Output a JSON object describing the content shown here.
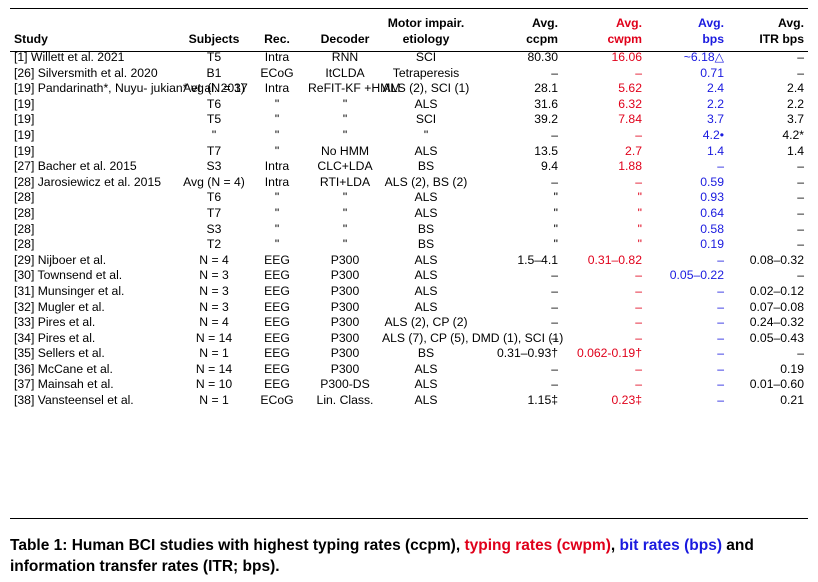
{
  "table": {
    "headers": [
      {
        "lines": [
          "Study"
        ],
        "color": "black"
      },
      {
        "lines": [
          "Subjects"
        ],
        "color": "black"
      },
      {
        "lines": [
          "Rec."
        ],
        "color": "black"
      },
      {
        "lines": [
          "Decoder"
        ],
        "color": "black"
      },
      {
        "lines": [
          "Motor impair.",
          "etiology"
        ],
        "color": "black"
      },
      {
        "lines": [
          "Avg.",
          "ccpm"
        ],
        "color": "black"
      },
      {
        "lines": [
          "Avg.",
          "cwpm"
        ],
        "color": "red"
      },
      {
        "lines": [
          "Avg.",
          "bps"
        ],
        "color": "blue"
      },
      {
        "lines": [
          "Avg.",
          "ITR bps"
        ],
        "color": "black"
      }
    ],
    "rows": [
      [
        "[1] Willett et al. 2021",
        "T5",
        "Intra",
        "RNN",
        "SCI",
        "80.30",
        "16.06",
        "~6.18△",
        "–"
      ],
      [
        "[26] Silversmith et al. 2020",
        "B1",
        "ECoG",
        "ItCLDA",
        "Tetraperesis",
        "–",
        "–",
        "0.71",
        "–"
      ],
      [
        "[19] Pandarinath*, Nuyu-\n       jukian* et al. 2017",
        "Avg\n(N = 3)",
        "Intra",
        "ReFIT-KF\n+HMM",
        "ALS (2),\nSCI (1)",
        "28.1",
        "5.62",
        "2.4",
        "2.4"
      ],
      [
        "[19]",
        "T6",
        "\"",
        "\"",
        "ALS",
        "31.6",
        "6.32",
        "2.2",
        "2.2"
      ],
      [
        "[19]",
        "T5",
        "\"",
        "\"",
        "SCI",
        "39.2",
        "7.84",
        "3.7",
        "3.7"
      ],
      [
        "[19]",
        "\"",
        "\"",
        "\"",
        "\"",
        "–",
        "–",
        "4.2•",
        "4.2*"
      ],
      [
        "[19]",
        "T7",
        "\"",
        "No HMM",
        "ALS",
        "13.5",
        "2.7",
        "1.4",
        "1.4"
      ],
      [
        "[27] Bacher et al. 2015",
        "S3",
        "Intra",
        "CLC+LDA",
        "BS",
        "9.4",
        "1.88",
        "–",
        "–"
      ],
      [
        "[28] Jarosiewicz et al. 2015",
        "Avg\n(N = 4)",
        "Intra",
        "RTI+LDA",
        "ALS (2),\nBS (2)",
        "–",
        "–",
        "0.59",
        "–"
      ],
      [
        "[28]",
        "T6",
        "\"",
        "\"",
        "ALS",
        "\"",
        "\"",
        "0.93",
        "–"
      ],
      [
        "[28]",
        "T7",
        "\"",
        "\"",
        "ALS",
        "\"",
        "\"",
        "0.64",
        "–"
      ],
      [
        "[28]",
        "S3",
        "\"",
        "\"",
        "BS",
        "\"",
        "\"",
        "0.58",
        "–"
      ],
      [
        "[28]",
        "T2",
        "\"",
        "\"",
        "BS",
        "\"",
        "\"",
        "0.19",
        "–"
      ],
      [
        "[29] Nijboer et al.",
        "N = 4",
        "EEG",
        "P300",
        "ALS",
        "1.5–4.1",
        "0.31–0.82",
        "–",
        "0.08–0.32"
      ],
      [
        "[30] Townsend et al.",
        "N = 3",
        "EEG",
        "P300",
        "ALS",
        "–",
        "–",
        "0.05–0.22",
        "–"
      ],
      [
        "[31] Munsinger et al.",
        "N = 3",
        "EEG",
        "P300",
        "ALS",
        "–",
        "–",
        "–",
        "0.02–0.12"
      ],
      [
        "[32] Mugler et al.",
        "N = 3",
        "EEG",
        "P300",
        "ALS",
        "–",
        "–",
        "–",
        "0.07–0.08"
      ],
      [
        "[33] Pires et al.",
        "N = 4",
        "EEG",
        "P300",
        "ALS (2),\nCP (2)",
        "–",
        "–",
        "–",
        "0.24–0.32"
      ],
      [
        "[34] Pires et al.",
        "N = 14",
        "EEG",
        "P300",
        "ALS (7),\nCP (5),\nDMD (1),\nSCI (1)",
        "–",
        "–",
        "–",
        "0.05–0.43"
      ],
      [
        "[35] Sellers et al.",
        "N = 1",
        "EEG",
        "P300",
        "BS",
        "0.31–0.93†",
        "0.062-0.19†",
        "–",
        "–"
      ],
      [
        "[36] McCane et al.",
        "N = 14",
        "EEG",
        "P300",
        "ALS",
        "–",
        "–",
        "–",
        "0.19"
      ],
      [
        "[37] Mainsah et al.",
        "N = 10",
        "EEG",
        "P300-DS",
        "ALS",
        "–",
        "–",
        "–",
        "0.01–0.60"
      ],
      [
        "[38] Vansteensel et al.",
        "N = 1",
        "ECoG",
        "Lin. Class.",
        "ALS",
        "1.15‡",
        "0.23‡",
        "–",
        "0.21"
      ]
    ]
  },
  "caption": {
    "prefix": "Table 1: Human BCI studies with highest typing rates (ccpm), ",
    "cwpm_part": "typing rates (cwpm)",
    "sep": ", ",
    "bps_part": "bit rates (bps)",
    "suffix": " and information transfer rates (ITR; bps)."
  },
  "colors": {
    "cwpm": "#e0001a",
    "bps": "#1a1adf",
    "text": "#000000"
  }
}
